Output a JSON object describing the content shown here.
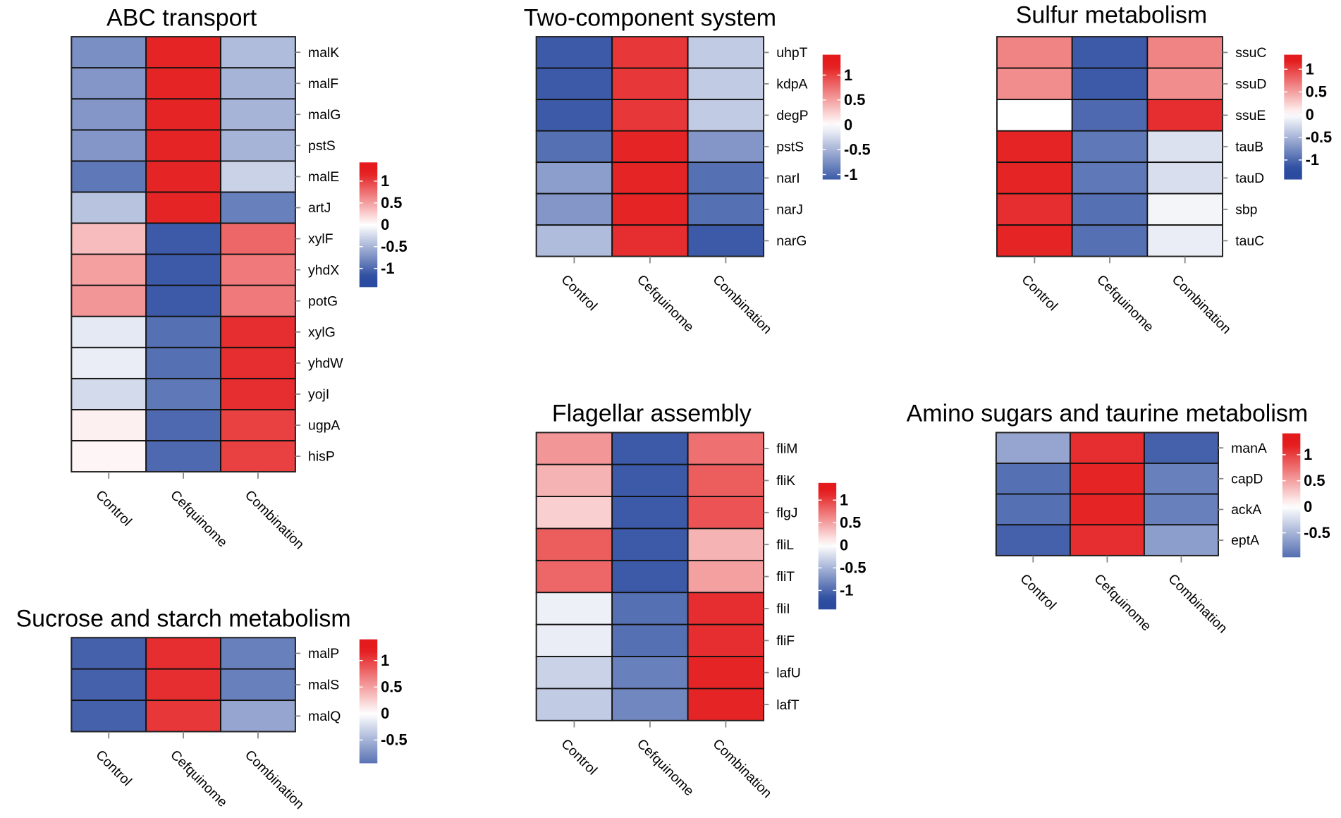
{
  "chart_data": [
    {
      "type": "heatmap",
      "title": "ABC transport",
      "columns": [
        "Control",
        "Cefquinome",
        "Combination"
      ],
      "rows": [
        "malK",
        "malF",
        "malG",
        "pstS",
        "malE",
        "artJ",
        "xylF",
        "yhdX",
        "potG",
        "xylG",
        "yhdW",
        "yojI",
        "ugpA",
        "hisP"
      ],
      "values": [
        [
          -0.75,
          1.15,
          -0.45
        ],
        [
          -0.7,
          1.15,
          -0.5
        ],
        [
          -0.7,
          1.15,
          -0.5
        ],
        [
          -0.7,
          1.15,
          -0.5
        ],
        [
          -0.9,
          1.15,
          -0.3
        ],
        [
          -0.4,
          1.15,
          -0.85
        ],
        [
          0.35,
          -1.1,
          0.8
        ],
        [
          0.5,
          -1.1,
          0.7
        ],
        [
          0.55,
          -1.1,
          0.7
        ],
        [
          -0.15,
          -0.95,
          1.1
        ],
        [
          -0.12,
          -0.95,
          1.1
        ],
        [
          -0.25,
          -0.9,
          1.1
        ],
        [
          0.08,
          -1.0,
          1.0
        ],
        [
          0.05,
          -1.0,
          1.0
        ]
      ],
      "legend_ticks": [
        "1",
        "0.5",
        "0",
        "-0.5",
        "-1"
      ],
      "legend_range": [
        -1.43,
        1.43
      ]
    },
    {
      "type": "heatmap",
      "title": "Sucrose and starch metabolism",
      "columns": [
        "Control",
        "Cefquinome",
        "Combination"
      ],
      "rows": [
        "malP",
        "malS",
        "malQ"
      ],
      "values": [
        [
          -1.05,
          1.1,
          -0.85
        ],
        [
          -1.05,
          1.1,
          -0.85
        ],
        [
          -1.05,
          1.05,
          -0.6
        ]
      ],
      "legend_ticks": [
        "1",
        "0.5",
        "0",
        "-0.5"
      ],
      "legend_range": [
        -0.94,
        1.4
      ]
    },
    {
      "type": "heatmap",
      "title": "Two-component system",
      "columns": [
        "Control",
        "Cefquinome",
        "Combination"
      ],
      "rows": [
        "uhpT",
        "kdpA",
        "degP",
        "pstS",
        "narI",
        "narJ",
        "narG"
      ],
      "values": [
        [
          -1.1,
          1.05,
          -0.35
        ],
        [
          -1.1,
          1.05,
          -0.35
        ],
        [
          -1.1,
          1.05,
          -0.35
        ],
        [
          -0.95,
          1.15,
          -0.7
        ],
        [
          -0.65,
          1.15,
          -0.95
        ],
        [
          -0.7,
          1.15,
          -0.95
        ],
        [
          -0.45,
          1.1,
          -1.1
        ]
      ],
      "legend_ticks": [
        "1",
        "0.5",
        "0",
        "-0.5",
        "-1"
      ],
      "legend_range": [
        -1.1,
        1.41
      ]
    },
    {
      "type": "heatmap",
      "title": "Sulfur metabolism",
      "columns": [
        "Control",
        "Cefquinome",
        "Combination"
      ],
      "rows": [
        "ssuC",
        "ssuD",
        "ssuE",
        "tauB",
        "tauD",
        "sbp",
        "tauC"
      ],
      "values": [
        [
          0.65,
          -1.1,
          0.65
        ],
        [
          0.6,
          -1.1,
          0.6
        ],
        [
          0.0,
          -1.0,
          1.1
        ],
        [
          1.15,
          -0.9,
          -0.2
        ],
        [
          1.15,
          -0.9,
          -0.22
        ],
        [
          1.1,
          -0.95,
          -0.07
        ],
        [
          1.15,
          -0.95,
          -0.12
        ]
      ],
      "legend_ticks": [
        "1",
        "0.5",
        "0",
        "-0.5",
        "-1"
      ],
      "legend_range": [
        -1.43,
        1.32
      ]
    },
    {
      "type": "heatmap",
      "title": "Flagellar assembly",
      "columns": [
        "Control",
        "Cefquinome",
        "Combination"
      ],
      "rows": [
        "fliM",
        "fliK",
        "flgJ",
        "fliL",
        "fliT",
        "fliI",
        "fliF",
        "lafU",
        "lafT"
      ],
      "values": [
        [
          0.55,
          -1.1,
          0.75
        ],
        [
          0.4,
          -1.1,
          0.85
        ],
        [
          0.25,
          -1.1,
          0.9
        ],
        [
          0.85,
          -1.1,
          0.4
        ],
        [
          0.8,
          -1.1,
          0.5
        ],
        [
          -0.1,
          -0.95,
          1.1
        ],
        [
          -0.12,
          -0.95,
          1.1
        ],
        [
          -0.3,
          -0.85,
          1.15
        ],
        [
          -0.35,
          -0.8,
          1.15
        ]
      ],
      "legend_ticks": [
        "1",
        "0.5",
        "0",
        "-0.5",
        "-1"
      ],
      "legend_range": [
        -1.42,
        1.38
      ]
    },
    {
      "type": "heatmap",
      "title": "Amino sugars and taurine metabolism",
      "columns": [
        "Control",
        "Cefquinome",
        "Combination"
      ],
      "rows": [
        "manA",
        "capD",
        "ackA",
        "eptA"
      ],
      "values": [
        [
          -0.6,
          1.1,
          -1.05
        ],
        [
          -0.95,
          1.15,
          -0.85
        ],
        [
          -0.95,
          1.15,
          -0.85
        ],
        [
          -1.05,
          1.1,
          -0.65
        ]
      ],
      "legend_ticks": [
        "1",
        "0.5",
        "0",
        "-0.5"
      ],
      "legend_range": [
        -0.97,
        1.41
      ]
    }
  ],
  "colors": {
    "low": "#2a4b9f",
    "mid": "#ffffff",
    "high": "#e41a1c"
  }
}
